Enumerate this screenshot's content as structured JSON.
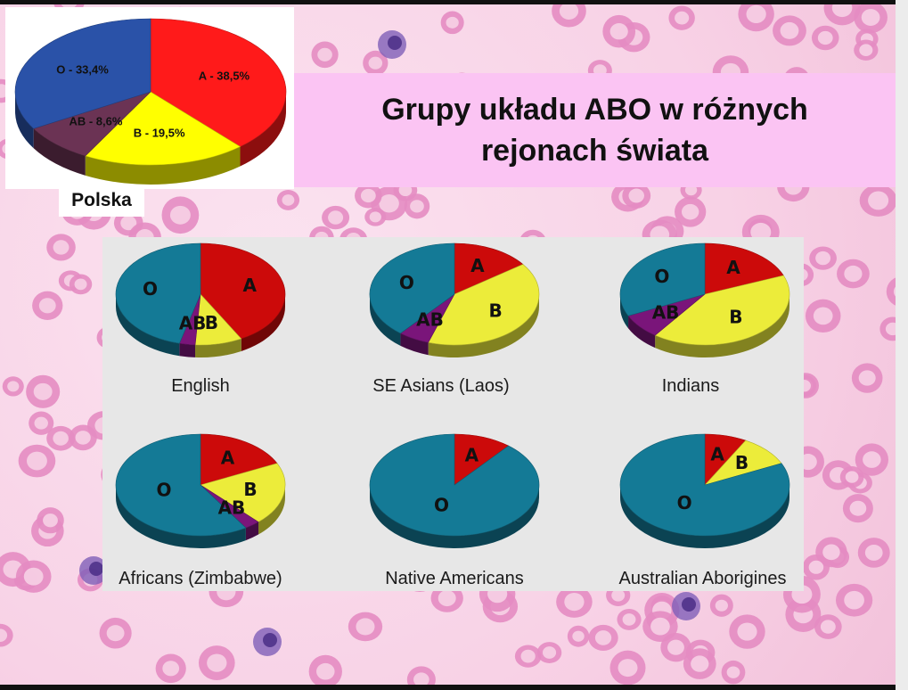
{
  "slide": {
    "title_line1": "Grupy układu ABO w różnych",
    "title_line2": "rejonach świata",
    "polska_label": "Polska"
  },
  "colors": {
    "A": "#cc0a0a",
    "B": "#ecec3a",
    "O": "#147a96",
    "AB": "#7a157a",
    "polska_A": "#ff1a1a",
    "polska_B": "#ffff00",
    "polska_O": "#2a52a8",
    "polska_AB": "#6b3354"
  },
  "chart_data": [
    {
      "type": "pie",
      "name": "Polska",
      "series": [
        {
          "name": "A",
          "label": "A - 38,5%",
          "value": 38.5
        },
        {
          "name": "B",
          "label": "B - 19,5%",
          "value": 19.5
        },
        {
          "name": "AB",
          "label": "AB - 8,6%",
          "value": 8.6
        },
        {
          "name": "O",
          "label": "O - 33,4%",
          "value": 33.4
        }
      ]
    },
    {
      "type": "pie",
      "name": "English",
      "series": [
        {
          "name": "A",
          "label": "A",
          "value": 42
        },
        {
          "name": "B",
          "label": "B",
          "value": 9
        },
        {
          "name": "AB",
          "label": "AB",
          "value": 3
        },
        {
          "name": "O",
          "label": "O",
          "value": 46
        }
      ]
    },
    {
      "type": "pie",
      "name": "SE Asians (Laos)",
      "series": [
        {
          "name": "A",
          "label": "A",
          "value": 15
        },
        {
          "name": "B",
          "label": "B",
          "value": 40
        },
        {
          "name": "AB",
          "label": "AB",
          "value": 6
        },
        {
          "name": "O",
          "label": "O",
          "value": 39
        }
      ]
    },
    {
      "type": "pie",
      "name": "Indians",
      "series": [
        {
          "name": "A",
          "label": "A",
          "value": 19
        },
        {
          "name": "B",
          "label": "B",
          "value": 41
        },
        {
          "name": "AB",
          "label": "AB",
          "value": 8
        },
        {
          "name": "O",
          "label": "O",
          "value": 32
        }
      ]
    },
    {
      "type": "pie",
      "name": "Africans (Zimbabwe)",
      "series": [
        {
          "name": "A",
          "label": "A",
          "value": 18
        },
        {
          "name": "B",
          "label": "B",
          "value": 20
        },
        {
          "name": "AB",
          "label": "AB",
          "value": 3
        },
        {
          "name": "O",
          "label": "O",
          "value": 59
        }
      ]
    },
    {
      "type": "pie",
      "name": "Native Americans",
      "series": [
        {
          "name": "A",
          "label": "A",
          "value": 11
        },
        {
          "name": "O",
          "label": "O",
          "value": 89
        }
      ]
    },
    {
      "type": "pie",
      "name": "Australian Aborigines",
      "series": [
        {
          "name": "A",
          "label": "A",
          "value": 8
        },
        {
          "name": "B",
          "label": "B",
          "value": 10
        },
        {
          "name": "O",
          "label": "O",
          "value": 82
        }
      ]
    }
  ]
}
